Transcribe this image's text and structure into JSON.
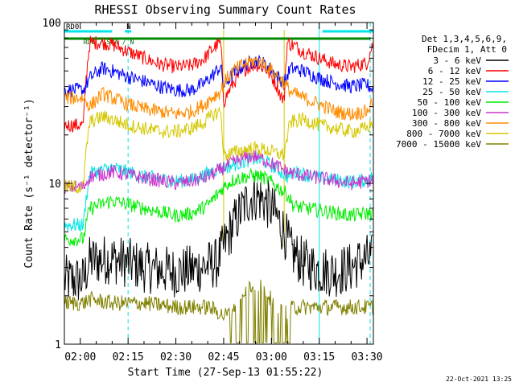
{
  "chart_data": {
    "type": "line",
    "title": "RHESSI Observing Summary Count Rates",
    "xlabel": "Start Time (27-Sep-13 01:55:22)",
    "ylabel": "Count Rate (s⁻¹ detector⁻¹)",
    "yscale": "log",
    "ylim": [
      1,
      100
    ],
    "y_ticks": [
      "1",
      "10",
      "100"
    ],
    "x_ticks": [
      "02:00",
      "02:15",
      "02:30",
      "02:45",
      "03:00",
      "03:15",
      "03:30"
    ],
    "x_tick_minutes": [
      5,
      20,
      35,
      50,
      65,
      80,
      95
    ],
    "xlim_minutes": [
      0,
      97
    ],
    "legend_header": [
      "Det 1,3,4,5,6,9,",
      "FDecim 1, Att 0"
    ],
    "series": [
      {
        "name": "3 - 6 keV",
        "color": "#000000",
        "t": [
          0,
          6,
          8,
          15,
          25,
          35,
          40,
          48,
          50,
          52,
          55,
          58,
          60,
          62,
          65,
          69,
          71,
          75,
          80,
          85,
          90,
          92,
          95,
          97
        ],
        "v": [
          2.5,
          2.5,
          3.3,
          3.4,
          3.0,
          2.8,
          2.9,
          3.2,
          4.0,
          5.0,
          6.5,
          8.0,
          8.3,
          8.0,
          7.0,
          5.0,
          3.8,
          3.2,
          2.9,
          2.8,
          3.0,
          3.2,
          3.4,
          3.4
        ]
      },
      {
        "name": "6 - 12 keV",
        "color": "#ff0000",
        "t": [
          0,
          6,
          8,
          12,
          15,
          20,
          25,
          30,
          35,
          40,
          44,
          47,
          49,
          50,
          53,
          57,
          60,
          63,
          66,
          68,
          69,
          70,
          72,
          75,
          80,
          85,
          90,
          95,
          97
        ],
        "v": [
          23,
          23,
          75,
          75,
          73,
          66,
          60,
          55,
          53,
          54,
          60,
          70,
          75,
          32,
          42,
          52,
          55,
          52,
          43,
          35,
          32,
          75,
          72,
          66,
          60,
          55,
          53,
          56,
          75
        ]
      },
      {
        "name": "12 - 25 keV",
        "color": "#0000ff",
        "t": [
          0,
          6,
          8,
          12,
          15,
          20,
          25,
          30,
          35,
          40,
          44,
          47,
          49,
          50,
          53,
          57,
          60,
          63,
          66,
          69,
          71,
          75,
          80,
          85,
          90,
          95,
          97
        ],
        "v": [
          38,
          38,
          45,
          52,
          50,
          46,
          43,
          40,
          38,
          38,
          42,
          48,
          53,
          40,
          48,
          55,
          58,
          55,
          48,
          42,
          52,
          50,
          45,
          42,
          40,
          41,
          38
        ]
      },
      {
        "name": "25 - 50 keV",
        "color": "#00e5e5",
        "t": [
          0,
          6,
          8,
          15,
          25,
          35,
          40,
          45,
          48,
          50,
          53,
          57,
          60,
          63,
          66,
          70,
          72,
          80,
          90,
          95,
          97
        ],
        "v": [
          5.5,
          5.5,
          11.5,
          12.5,
          11.0,
          10.3,
          10.5,
          11.5,
          12.3,
          12.5,
          13.0,
          13.8,
          14.2,
          13.6,
          12.6,
          11.0,
          11.8,
          10.8,
          10.2,
          10.5,
          11.0
        ]
      },
      {
        "name": "50 - 100 keV",
        "color": "#00ee00",
        "t": [
          0,
          6,
          8,
          15,
          25,
          35,
          40,
          45,
          48,
          50,
          53,
          57,
          60,
          63,
          66,
          70,
          72,
          80,
          90,
          95,
          97
        ],
        "v": [
          4.5,
          4.5,
          7.0,
          7.8,
          7.0,
          6.3,
          6.5,
          7.3,
          8.5,
          9.5,
          10.5,
          11.0,
          11.2,
          10.8,
          9.8,
          8.5,
          7.2,
          6.8,
          6.3,
          6.5,
          6.5
        ]
      },
      {
        "name": "100 - 300 keV",
        "color": "#cc33cc",
        "t": [
          0,
          6,
          8,
          15,
          25,
          35,
          40,
          45,
          48,
          50,
          53,
          57,
          60,
          63,
          66,
          70,
          72,
          80,
          90,
          95,
          97
        ],
        "v": [
          9.5,
          9.5,
          11.0,
          11.8,
          10.8,
          10.0,
          10.3,
          11.0,
          11.8,
          12.5,
          13.5,
          14.5,
          14.8,
          14.0,
          13.0,
          11.8,
          11.5,
          10.8,
          10.0,
          10.3,
          10.5
        ]
      },
      {
        "name": "300 - 800 keV",
        "color": "#ff8c00",
        "t": [
          0,
          6,
          8,
          12,
          15,
          20,
          25,
          30,
          35,
          40,
          44,
          47,
          49,
          50,
          53,
          57,
          60,
          63,
          66,
          69,
          71,
          75,
          80,
          85,
          90,
          95,
          97
        ],
        "v": [
          34,
          34,
          30,
          36,
          34,
          31,
          29,
          28,
          27,
          28,
          31,
          35,
          37,
          42,
          50,
          56,
          58,
          55,
          48,
          42,
          37,
          34,
          31,
          28,
          27,
          28,
          33
        ]
      },
      {
        "name": "800 - 7000 keV",
        "color": "#d4c800",
        "t": [
          0,
          6,
          8,
          12,
          15,
          20,
          25,
          30,
          35,
          40,
          44,
          47,
          49,
          50,
          53,
          57,
          60,
          63,
          66,
          69,
          71,
          75,
          80,
          85,
          90,
          95,
          97
        ],
        "v": [
          9.5,
          9.5,
          24,
          26,
          25,
          23,
          22,
          21,
          21,
          22,
          24,
          27,
          28,
          15,
          15.5,
          16.3,
          16.5,
          16.2,
          15.5,
          15,
          24,
          25,
          23,
          22,
          21,
          22,
          24
        ]
      },
      {
        "name": "7000 - 15000 keV",
        "color": "#808000",
        "t": [
          0,
          6,
          8,
          15,
          25,
          35,
          40,
          45,
          48,
          50,
          53,
          57,
          60,
          63,
          66,
          70,
          72,
          80,
          90,
          95,
          97
        ],
        "v": [
          1.8,
          1.8,
          1.9,
          1.8,
          1.8,
          1.7,
          1.7,
          1.7,
          1.6,
          1.5,
          1.6,
          2.1,
          2.4,
          2.2,
          1.7,
          1.6,
          1.7,
          1.7,
          1.7,
          1.7,
          1.7
        ]
      }
    ],
    "markers": {
      "cyan_solid_minutes": [
        0,
        80
      ],
      "cyan_dashed_minutes": [
        20,
        96
      ],
      "gold_solid_minutes": [
        50,
        69
      ],
      "status_bars": [
        {
          "label": "RD0",
          "color": "#00e5e5",
          "minutes": [
            0,
            15
          ]
        },
        {
          "label": "N",
          "color": "#00e5e5",
          "minutes": [
            19,
            21
          ]
        },
        {
          "label": "",
          "color": "#00e5e5",
          "minutes": [
            81,
            97
          ]
        },
        {
          "label": "",
          "color": "#008800",
          "minutes": [
            0,
            96
          ]
        }
      ],
      "overlap_text": "RD0 / SAA / N"
    },
    "timestamp": "22-Oct-2021 13:25"
  }
}
